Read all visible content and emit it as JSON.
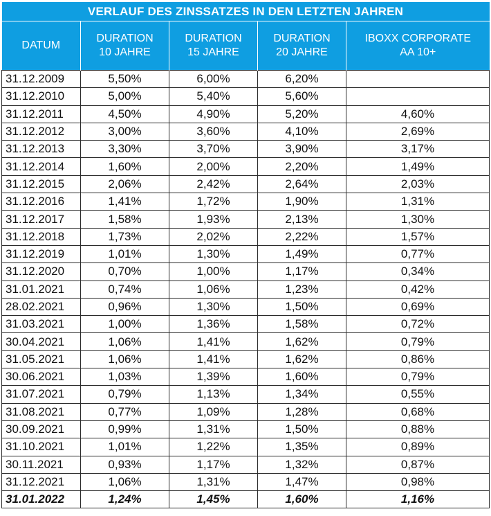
{
  "chart_data": {
    "type": "table",
    "title": "VERLAUF DES ZINSSATZES IN DEN LETZTEN JAHREN",
    "columns": [
      {
        "line1": "DATUM",
        "line2": ""
      },
      {
        "line1": "DURATION",
        "line2": "10 JAHRE"
      },
      {
        "line1": "DURATION",
        "line2": "15 JAHRE"
      },
      {
        "line1": "DURATION",
        "line2": "20 JAHRE"
      },
      {
        "line1": "IBOXX CORPORATE",
        "line2": "AA 10+"
      }
    ],
    "rows": [
      [
        "31.12.2009",
        "5,50%",
        "6,00%",
        "6,20%",
        ""
      ],
      [
        "31.12.2010",
        "5,00%",
        "5,40%",
        "5,60%",
        ""
      ],
      [
        "31.12.2011",
        "4,50%",
        "4,90%",
        "5,20%",
        "4,60%"
      ],
      [
        "31.12.2012",
        "3,00%",
        "3,60%",
        "4,10%",
        "2,69%"
      ],
      [
        "31.12.2013",
        "3,30%",
        "3,70%",
        "3,90%",
        "3,17%"
      ],
      [
        "31.12.2014",
        "1,60%",
        "2,00%",
        "2,20%",
        "1,49%"
      ],
      [
        "31.12.2015",
        "2,06%",
        "2,42%",
        "2,64%",
        "2,03%"
      ],
      [
        "31.12.2016",
        "1,41%",
        "1,72%",
        "1,90%",
        "1,31%"
      ],
      [
        "31.12.2017",
        "1,58%",
        "1,93%",
        "2,13%",
        "1,30%"
      ],
      [
        "31.12.2018",
        "1,73%",
        "2,02%",
        "2,22%",
        "1,57%"
      ],
      [
        "31.12.2019",
        "1,01%",
        "1,30%",
        "1,49%",
        "0,77%"
      ],
      [
        "31.12.2020",
        "0,70%",
        "1,00%",
        "1,17%",
        "0,34%"
      ],
      [
        "31.01.2021",
        "0,74%",
        "1,06%",
        "1,23%",
        "0,42%"
      ],
      [
        "28.02.2021",
        "0,96%",
        "1,30%",
        "1,50%",
        "0,69%"
      ],
      [
        "31.03.2021",
        "1,00%",
        "1,36%",
        "1,58%",
        "0,72%"
      ],
      [
        "30.04.2021",
        "1,06%",
        "1,41%",
        "1,62%",
        "0,79%"
      ],
      [
        "31.05.2021",
        "1,06%",
        "1,41%",
        "1,62%",
        "0,86%"
      ],
      [
        "30.06.2021",
        "1,03%",
        "1,39%",
        "1,60%",
        "0,79%"
      ],
      [
        "31.07.2021",
        "0,79%",
        "1,13%",
        "1,34%",
        "0,55%"
      ],
      [
        "31.08.2021",
        "0,77%",
        "1,09%",
        "1,28%",
        "0,68%"
      ],
      [
        "30.09.2021",
        "0,99%",
        "1,31%",
        "1,50%",
        "0,88%"
      ],
      [
        "31.10.2021",
        "1,01%",
        "1,22%",
        "1,35%",
        "0,89%"
      ],
      [
        "30.11.2021",
        "0,93%",
        "1,17%",
        "1,32%",
        "0,87%"
      ],
      [
        "31.12.2021",
        "1,06%",
        "1,31%",
        "1,47%",
        "0,98%"
      ],
      [
        "31.01.2022",
        "1,24%",
        "1,45%",
        "1,60%",
        "1,16%"
      ]
    ],
    "header_color": "#0f9ee1",
    "header_text_color": "#ffffff"
  }
}
